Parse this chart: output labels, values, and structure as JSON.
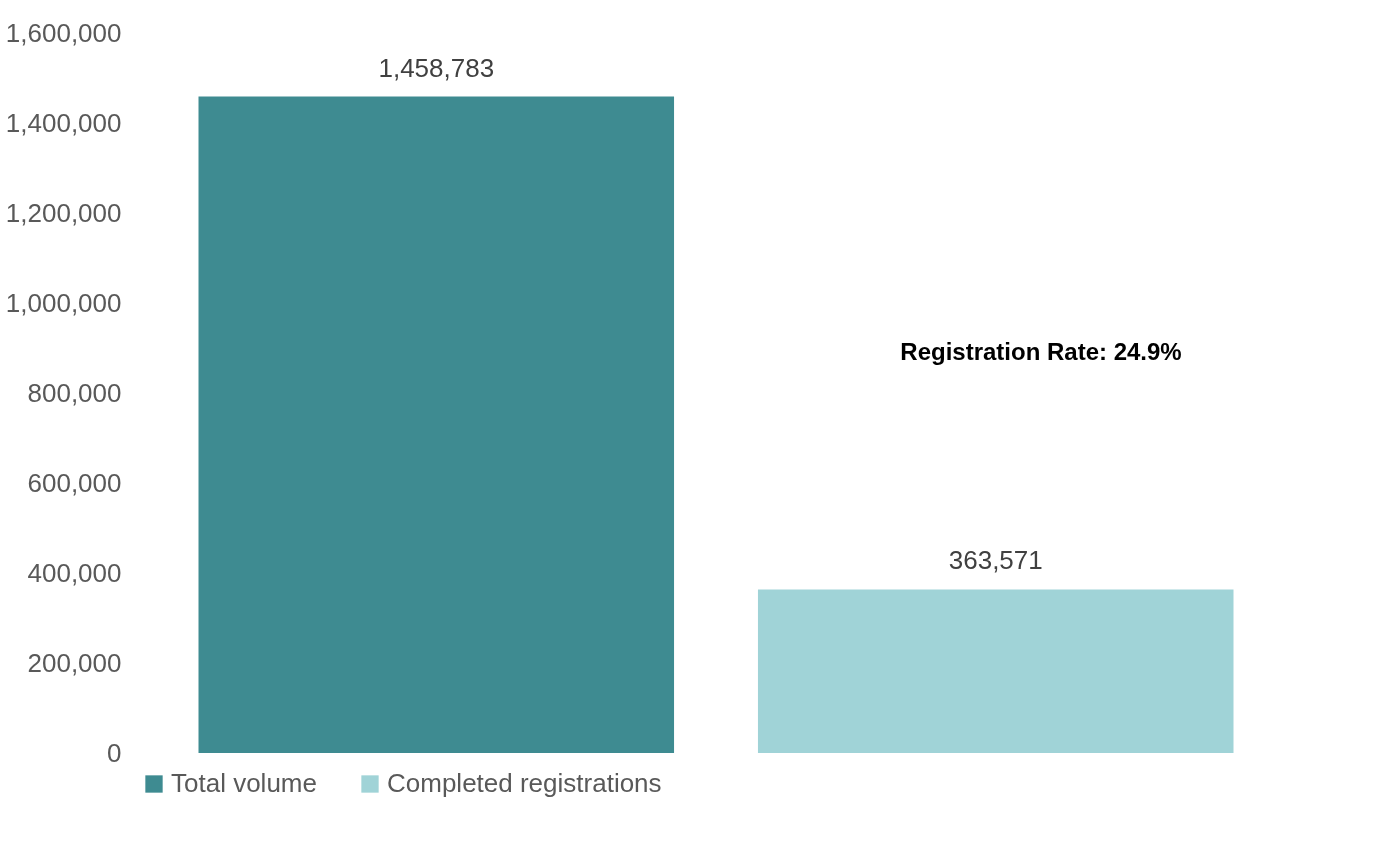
{
  "chart_data": {
    "type": "bar",
    "categories": [
      null
    ],
    "series": [
      {
        "name": "Total volume",
        "color": "#3e8b91",
        "values": [
          1458783
        ]
      },
      {
        "name": "Completed registrations",
        "color": "#a0d3d7",
        "values": [
          363571
        ]
      }
    ],
    "ylim": [
      0,
      1600000
    ],
    "yticks": [
      {
        "value": 0,
        "label": "0"
      },
      {
        "value": 200000,
        "label": "200,000"
      },
      {
        "value": 400000,
        "label": "400,000"
      },
      {
        "value": 600000,
        "label": "600,000"
      },
      {
        "value": 800000,
        "label": "800,000"
      },
      {
        "value": 1000000,
        "label": "1,000,000"
      },
      {
        "value": 1200000,
        "label": "1,200,000"
      },
      {
        "value": 1400000,
        "label": "1,400,000"
      },
      {
        "value": 1600000,
        "label": "1,600,000"
      }
    ],
    "value_labels": [
      [
        "1,458,783"
      ],
      [
        "363,571"
      ]
    ],
    "annotations": [
      "Registration Rate: 24.9%"
    ],
    "grid": false,
    "legend": "bottom",
    "tick_labels": "y"
  }
}
